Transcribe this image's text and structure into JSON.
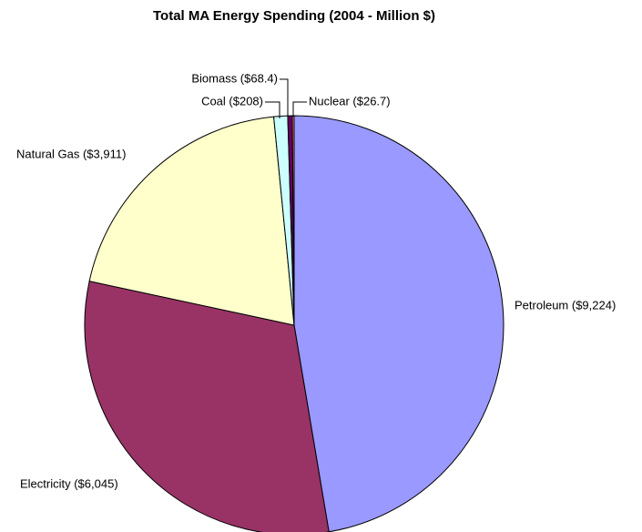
{
  "chart_data": {
    "type": "pie",
    "title": "Total MA Energy Spending (2004 - Million $)",
    "categories": [
      "Petroleum ($9,224)",
      "Electricity ($6,045)",
      "Natural Gas ($3,911)",
      "Coal ($208)",
      "Biomass ($68.4)",
      "Nuclear ($26.7)"
    ],
    "values": [
      9224,
      6045,
      3911,
      208,
      68.4,
      26.7
    ],
    "colors": [
      "#9999ff",
      "#993366",
      "#ffffcc",
      "#ccffff",
      "#660066",
      "#ff8080"
    ]
  }
}
